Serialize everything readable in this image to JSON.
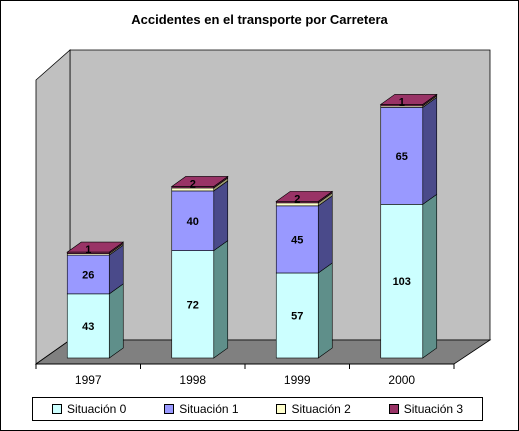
{
  "chart_data": {
    "type": "bar",
    "stacked": true,
    "three_d": true,
    "title": "Accidentes en el transporte por Carretera",
    "categories": [
      "1997",
      "1998",
      "1999",
      "2000"
    ],
    "series": [
      {
        "name": "Situación 0",
        "values": [
          43,
          72,
          57,
          103
        ],
        "color": "#ccffff",
        "side_color": "#5f8f8a"
      },
      {
        "name": "Situación 1",
        "values": [
          26,
          40,
          45,
          65
        ],
        "color": "#9999ff",
        "side_color": "#4a4a8a"
      },
      {
        "name": "Situación 2",
        "values": [
          1,
          2,
          2,
          1
        ],
        "color": "#ffffcc",
        "side_color": "#9a9a70"
      },
      {
        "name": "Situación 3",
        "values": [
          1,
          1,
          1,
          1
        ],
        "color": "#993366",
        "side_color": "#5a1f3c"
      }
    ],
    "data_labels": [
      [
        "43",
        "26",
        "1",
        ""
      ],
      [
        "72",
        "40",
        "2",
        ""
      ],
      [
        "57",
        "45",
        "2",
        ""
      ],
      [
        "103",
        "65",
        "1",
        ""
      ]
    ],
    "ylim": [
      0,
      180
    ],
    "legend_position": "bottom",
    "wall_color": "#c0c0c0",
    "floor_color": "#808080"
  }
}
